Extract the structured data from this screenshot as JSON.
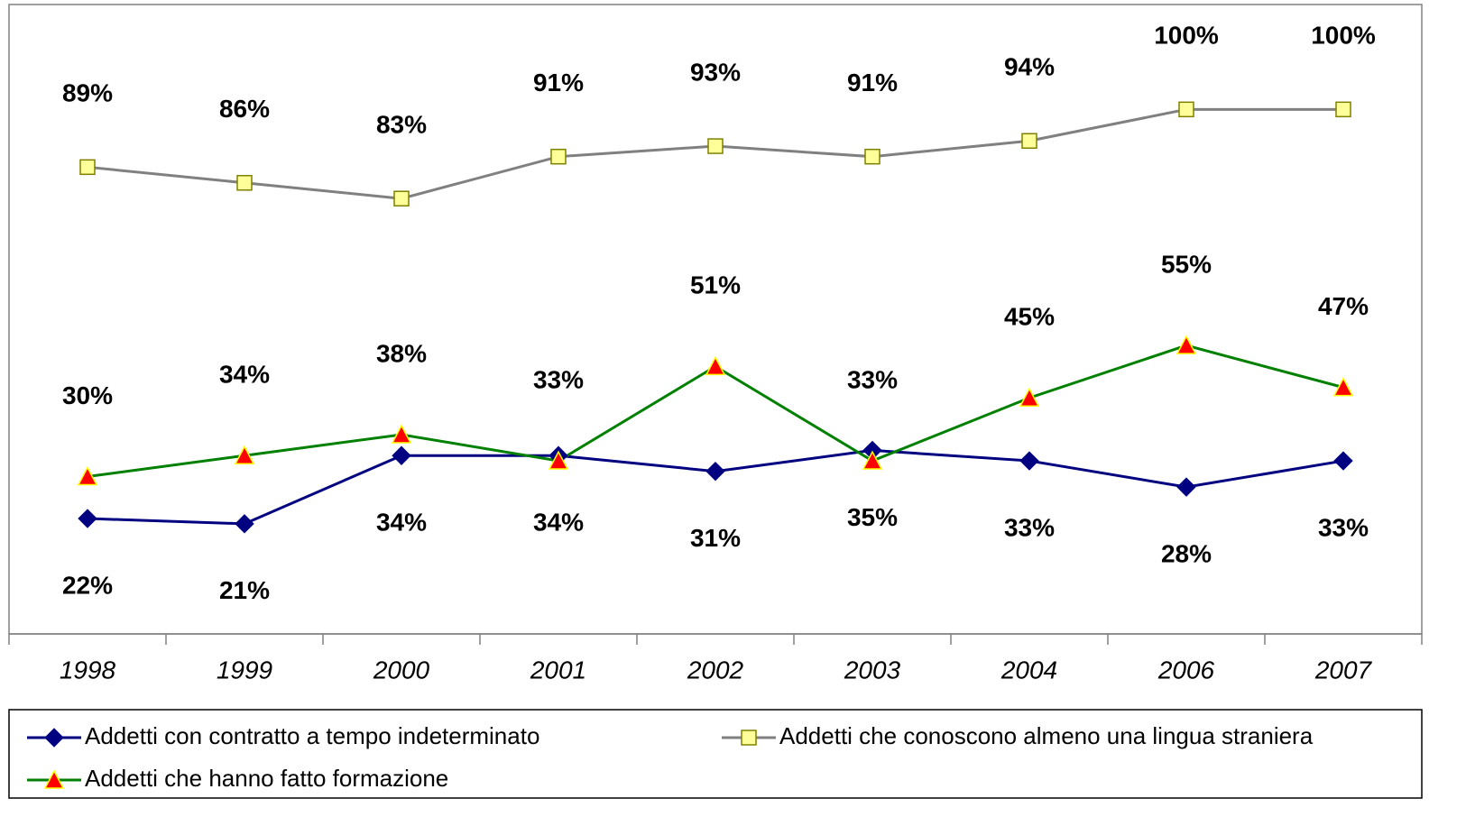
{
  "chart_data": {
    "type": "line",
    "categories": [
      "1998",
      "1999",
      "2000",
      "2001",
      "2002",
      "2003",
      "2004",
      "2006",
      "2007"
    ],
    "ylim": [
      0,
      120
    ],
    "legend": "bottom",
    "series": [
      {
        "name": "Addetti con contratto a tempo indeterminato",
        "color": "#000080",
        "marker": "diamond",
        "values": [
          22,
          21,
          34,
          34,
          31,
          35,
          33,
          28,
          33
        ],
        "value_labels": [
          "22%",
          "21%",
          "34%",
          "34%",
          "31%",
          "35%",
          "33%",
          "28%",
          "33%"
        ]
      },
      {
        "name": "Addetti che conoscono almeno una lingua straniera",
        "color": "#808080",
        "marker": "square",
        "values": [
          89,
          86,
          83,
          91,
          93,
          91,
          94,
          100,
          100
        ],
        "value_labels": [
          "89%",
          "86%",
          "83%",
          "91%",
          "93%",
          "91%",
          "94%",
          "100%",
          "100%"
        ]
      },
      {
        "name": "Addetti che hanno fatto formazione",
        "color": "#008000",
        "marker": "triangle",
        "values": [
          30,
          34,
          38,
          33,
          51,
          33,
          45,
          55,
          47
        ],
        "value_labels": [
          "30%",
          "34%",
          "38%",
          "33%",
          "51%",
          "33%",
          "45%",
          "55%",
          "47%"
        ]
      }
    ]
  }
}
